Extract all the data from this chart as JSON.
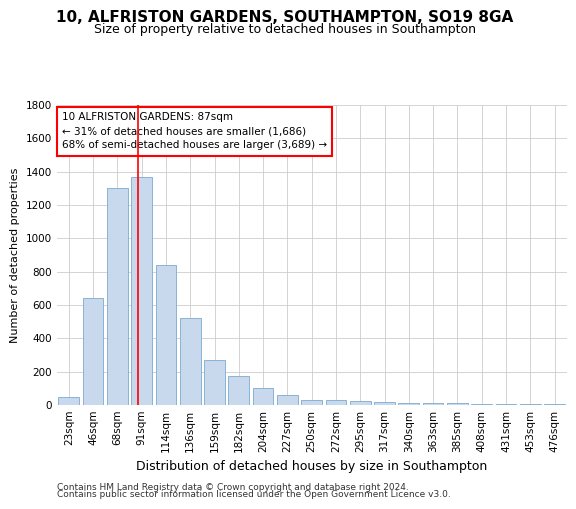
{
  "title1": "10, ALFRISTON GARDENS, SOUTHAMPTON, SO19 8GA",
  "title2": "Size of property relative to detached houses in Southampton",
  "xlabel": "Distribution of detached houses by size in Southampton",
  "ylabel": "Number of detached properties",
  "bar_labels": [
    "23sqm",
    "46sqm",
    "68sqm",
    "91sqm",
    "114sqm",
    "136sqm",
    "159sqm",
    "182sqm",
    "204sqm",
    "227sqm",
    "250sqm",
    "272sqm",
    "295sqm",
    "317sqm",
    "340sqm",
    "363sqm",
    "385sqm",
    "408sqm",
    "431sqm",
    "453sqm",
    "476sqm"
  ],
  "bar_values": [
    50,
    640,
    1300,
    1370,
    840,
    525,
    270,
    175,
    100,
    60,
    30,
    30,
    25,
    20,
    15,
    12,
    10,
    6,
    5,
    5,
    5
  ],
  "bar_color": "#c8d9ee",
  "bar_edge_color": "#7aaad0",
  "annotation_text": "10 ALFRISTON GARDENS: 87sqm\n← 31% of detached houses are smaller (1,686)\n68% of semi-detached houses are larger (3,689) →",
  "annotation_box_color": "white",
  "annotation_box_edge_color": "red",
  "property_line_x": 2.85,
  "property_line_color": "red",
  "ylim": [
    0,
    1800
  ],
  "yticks": [
    0,
    200,
    400,
    600,
    800,
    1000,
    1200,
    1400,
    1600,
    1800
  ],
  "grid_color": "#cccccc",
  "background_color": "white",
  "footer1": "Contains HM Land Registry data © Crown copyright and database right 2024.",
  "footer2": "Contains public sector information licensed under the Open Government Licence v3.0.",
  "title1_fontsize": 11,
  "title2_fontsize": 9,
  "xlabel_fontsize": 9,
  "ylabel_fontsize": 8,
  "tick_fontsize": 7.5,
  "footer_fontsize": 6.5,
  "annotation_fontsize": 7.5
}
